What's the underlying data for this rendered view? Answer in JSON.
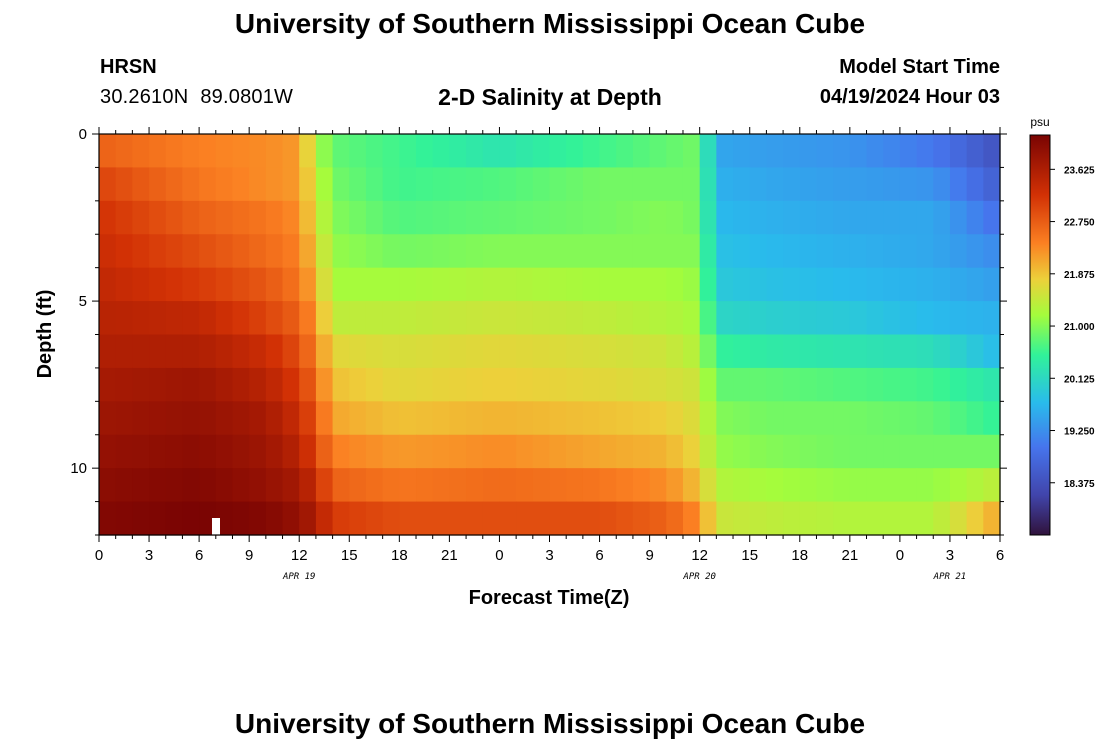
{
  "header": {
    "title": "University of Southern Mississippi Ocean Cube",
    "station": "HRSN",
    "latitude": "30.2610N",
    "longitude": "89.0801W",
    "subtitle": "2-D Salinity at Depth",
    "model_start_label": "Model Start Time",
    "model_start_value": "04/19/2024 Hour 03"
  },
  "footer": {
    "title": "University of Southern Mississippi Ocean Cube"
  },
  "chart_data": {
    "type": "heatmap",
    "title": "2-D Salinity at Depth",
    "xlabel": "Forecast Time(Z)",
    "ylabel": "Depth (ft)",
    "x_range_hours": [
      0,
      54
    ],
    "y_range_ft": [
      0,
      12
    ],
    "x_ticks": [
      {
        "hour": 0,
        "label": "0"
      },
      {
        "hour": 3,
        "label": "3"
      },
      {
        "hour": 6,
        "label": "6"
      },
      {
        "hour": 9,
        "label": "9"
      },
      {
        "hour": 12,
        "label": "12"
      },
      {
        "hour": 15,
        "label": "15"
      },
      {
        "hour": 18,
        "label": "18"
      },
      {
        "hour": 21,
        "label": "21"
      },
      {
        "hour": 24,
        "label": "0"
      },
      {
        "hour": 27,
        "label": "3"
      },
      {
        "hour": 30,
        "label": "6"
      },
      {
        "hour": 33,
        "label": "9"
      },
      {
        "hour": 36,
        "label": "12"
      },
      {
        "hour": 39,
        "label": "15"
      },
      {
        "hour": 42,
        "label": "18"
      },
      {
        "hour": 45,
        "label": "21"
      },
      {
        "hour": 48,
        "label": "0"
      },
      {
        "hour": 51,
        "label": "3"
      },
      {
        "hour": 54,
        "label": "6"
      }
    ],
    "date_labels": [
      {
        "hour": 12,
        "label": "APR 19"
      },
      {
        "hour": 36,
        "label": "APR 20"
      },
      {
        "hour": 51,
        "label": "APR 21"
      }
    ],
    "y_ticks": [
      {
        "depth": 0,
        "label": "0"
      },
      {
        "depth": 5,
        "label": "5"
      },
      {
        "depth": 10,
        "label": "10"
      }
    ],
    "depth_layers_ft": [
      0.5,
      1.5,
      2.5,
      3.5,
      4.5,
      5.5,
      6.5,
      7.5,
      8.5,
      9.5,
      10.5,
      11.5
    ],
    "time_hours": [
      0,
      6,
      10,
      12,
      13,
      14,
      18,
      24,
      30,
      34,
      36,
      37,
      40,
      45,
      50,
      54
    ],
    "salinity_psu": [
      [
        22.7,
        22.4,
        22.3,
        22.2,
        21.3,
        20.8,
        20.6,
        20.3,
        20.6,
        20.8,
        20.9,
        19.5,
        19.4,
        19.3,
        19.0,
        18.4
      ],
      [
        23.0,
        22.5,
        22.3,
        22.2,
        21.5,
        20.9,
        20.6,
        20.7,
        20.9,
        20.9,
        20.9,
        19.6,
        19.5,
        19.4,
        19.3,
        18.6
      ],
      [
        23.2,
        22.7,
        22.5,
        22.3,
        21.6,
        21.0,
        20.7,
        20.8,
        20.9,
        21.0,
        20.9,
        19.7,
        19.6,
        19.5,
        19.5,
        18.9
      ],
      [
        23.3,
        22.9,
        22.6,
        22.4,
        21.8,
        21.1,
        20.9,
        21.0,
        21.0,
        21.0,
        21.0,
        19.8,
        19.7,
        19.6,
        19.5,
        19.2
      ],
      [
        23.4,
        23.1,
        22.8,
        22.5,
        22.0,
        21.2,
        21.2,
        21.3,
        21.2,
        21.2,
        21.1,
        19.9,
        19.8,
        19.7,
        19.6,
        19.4
      ],
      [
        23.5,
        23.4,
        23.0,
        22.7,
        22.2,
        21.4,
        21.4,
        21.5,
        21.4,
        21.3,
        21.2,
        20.1,
        20.0,
        19.9,
        19.7,
        19.6
      ],
      [
        23.6,
        23.6,
        23.3,
        22.9,
        22.4,
        21.7,
        21.6,
        21.7,
        21.6,
        21.5,
        21.3,
        20.5,
        20.4,
        20.3,
        20.2,
        19.7
      ],
      [
        23.7,
        23.8,
        23.5,
        23.1,
        22.6,
        21.9,
        21.7,
        21.8,
        21.7,
        21.6,
        21.5,
        20.8,
        20.8,
        20.7,
        20.6,
        20.3
      ],
      [
        23.8,
        23.9,
        23.7,
        23.3,
        22.8,
        22.1,
        21.9,
        22.0,
        21.9,
        21.8,
        21.6,
        21.0,
        20.9,
        20.9,
        20.8,
        20.5
      ],
      [
        23.9,
        24.0,
        23.8,
        23.5,
        23.0,
        22.4,
        22.2,
        22.3,
        22.1,
        22.0,
        21.7,
        21.1,
        21.0,
        20.9,
        20.9,
        20.9
      ],
      [
        24.0,
        24.1,
        23.9,
        23.7,
        23.3,
        22.7,
        22.5,
        22.6,
        22.5,
        22.3,
        21.9,
        21.3,
        21.2,
        21.1,
        21.1,
        21.4
      ],
      [
        24.1,
        24.2,
        24.1,
        23.9,
        23.6,
        23.1,
        22.9,
        22.9,
        22.9,
        22.7,
        22.3,
        21.5,
        21.4,
        21.3,
        21.3,
        22.1
      ]
    ],
    "colorbar": {
      "unit": "psu",
      "min": 17.5,
      "max": 24.2,
      "tick_values": [
        23.625,
        22.75,
        21.875,
        21.0,
        20.125,
        19.25,
        18.375
      ],
      "tick_labels": [
        "23.625",
        "22.750",
        "21.875",
        "21.000",
        "20.125",
        "19.250",
        "18.375"
      ]
    }
  }
}
